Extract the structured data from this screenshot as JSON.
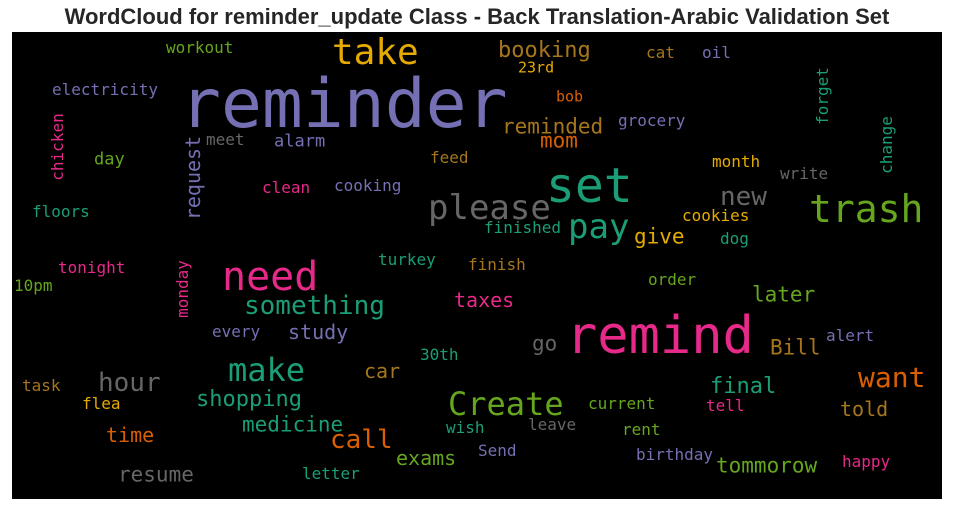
{
  "title": "WordCloud for reminder_update Class - Back Translation-Arabic Validation Set",
  "colors": {
    "purple": "#7570b3",
    "green": "#1b9e77",
    "orange": "#d95f02",
    "pink": "#e7298a",
    "lime": "#66a61e",
    "gold": "#e6ab02",
    "brown": "#a6761d",
    "gray": "#666666"
  },
  "words": [
    "reminder",
    "set",
    "remind",
    "take",
    "need",
    "trash",
    "please",
    "pay",
    "Create",
    "make",
    "something",
    "want",
    "new",
    "call",
    "hour",
    "booking",
    "reminded",
    "mom",
    "final",
    "later",
    "shopping",
    "medicine",
    "tommorow",
    "give",
    "taxes",
    "study",
    "exams",
    "time",
    "resume",
    "Bill",
    "go",
    "car",
    "told",
    "dog",
    "cookies",
    "month",
    "write",
    "alarm",
    "grocery",
    "cooking",
    "clean",
    "finish",
    "finished",
    "turkey",
    "feed",
    "meet",
    "day",
    "floors",
    "electricity",
    "workout",
    "cat",
    "oil",
    "23rd",
    "bob",
    "10pm",
    "tonight",
    "every",
    "30th",
    "alert",
    "order",
    "task",
    "flea",
    "current",
    "tell",
    "rent",
    "wish",
    "leave",
    "Send",
    "birthday",
    "letter",
    "happy",
    "forget",
    "change",
    "chicken",
    "monday",
    "request"
  ]
}
